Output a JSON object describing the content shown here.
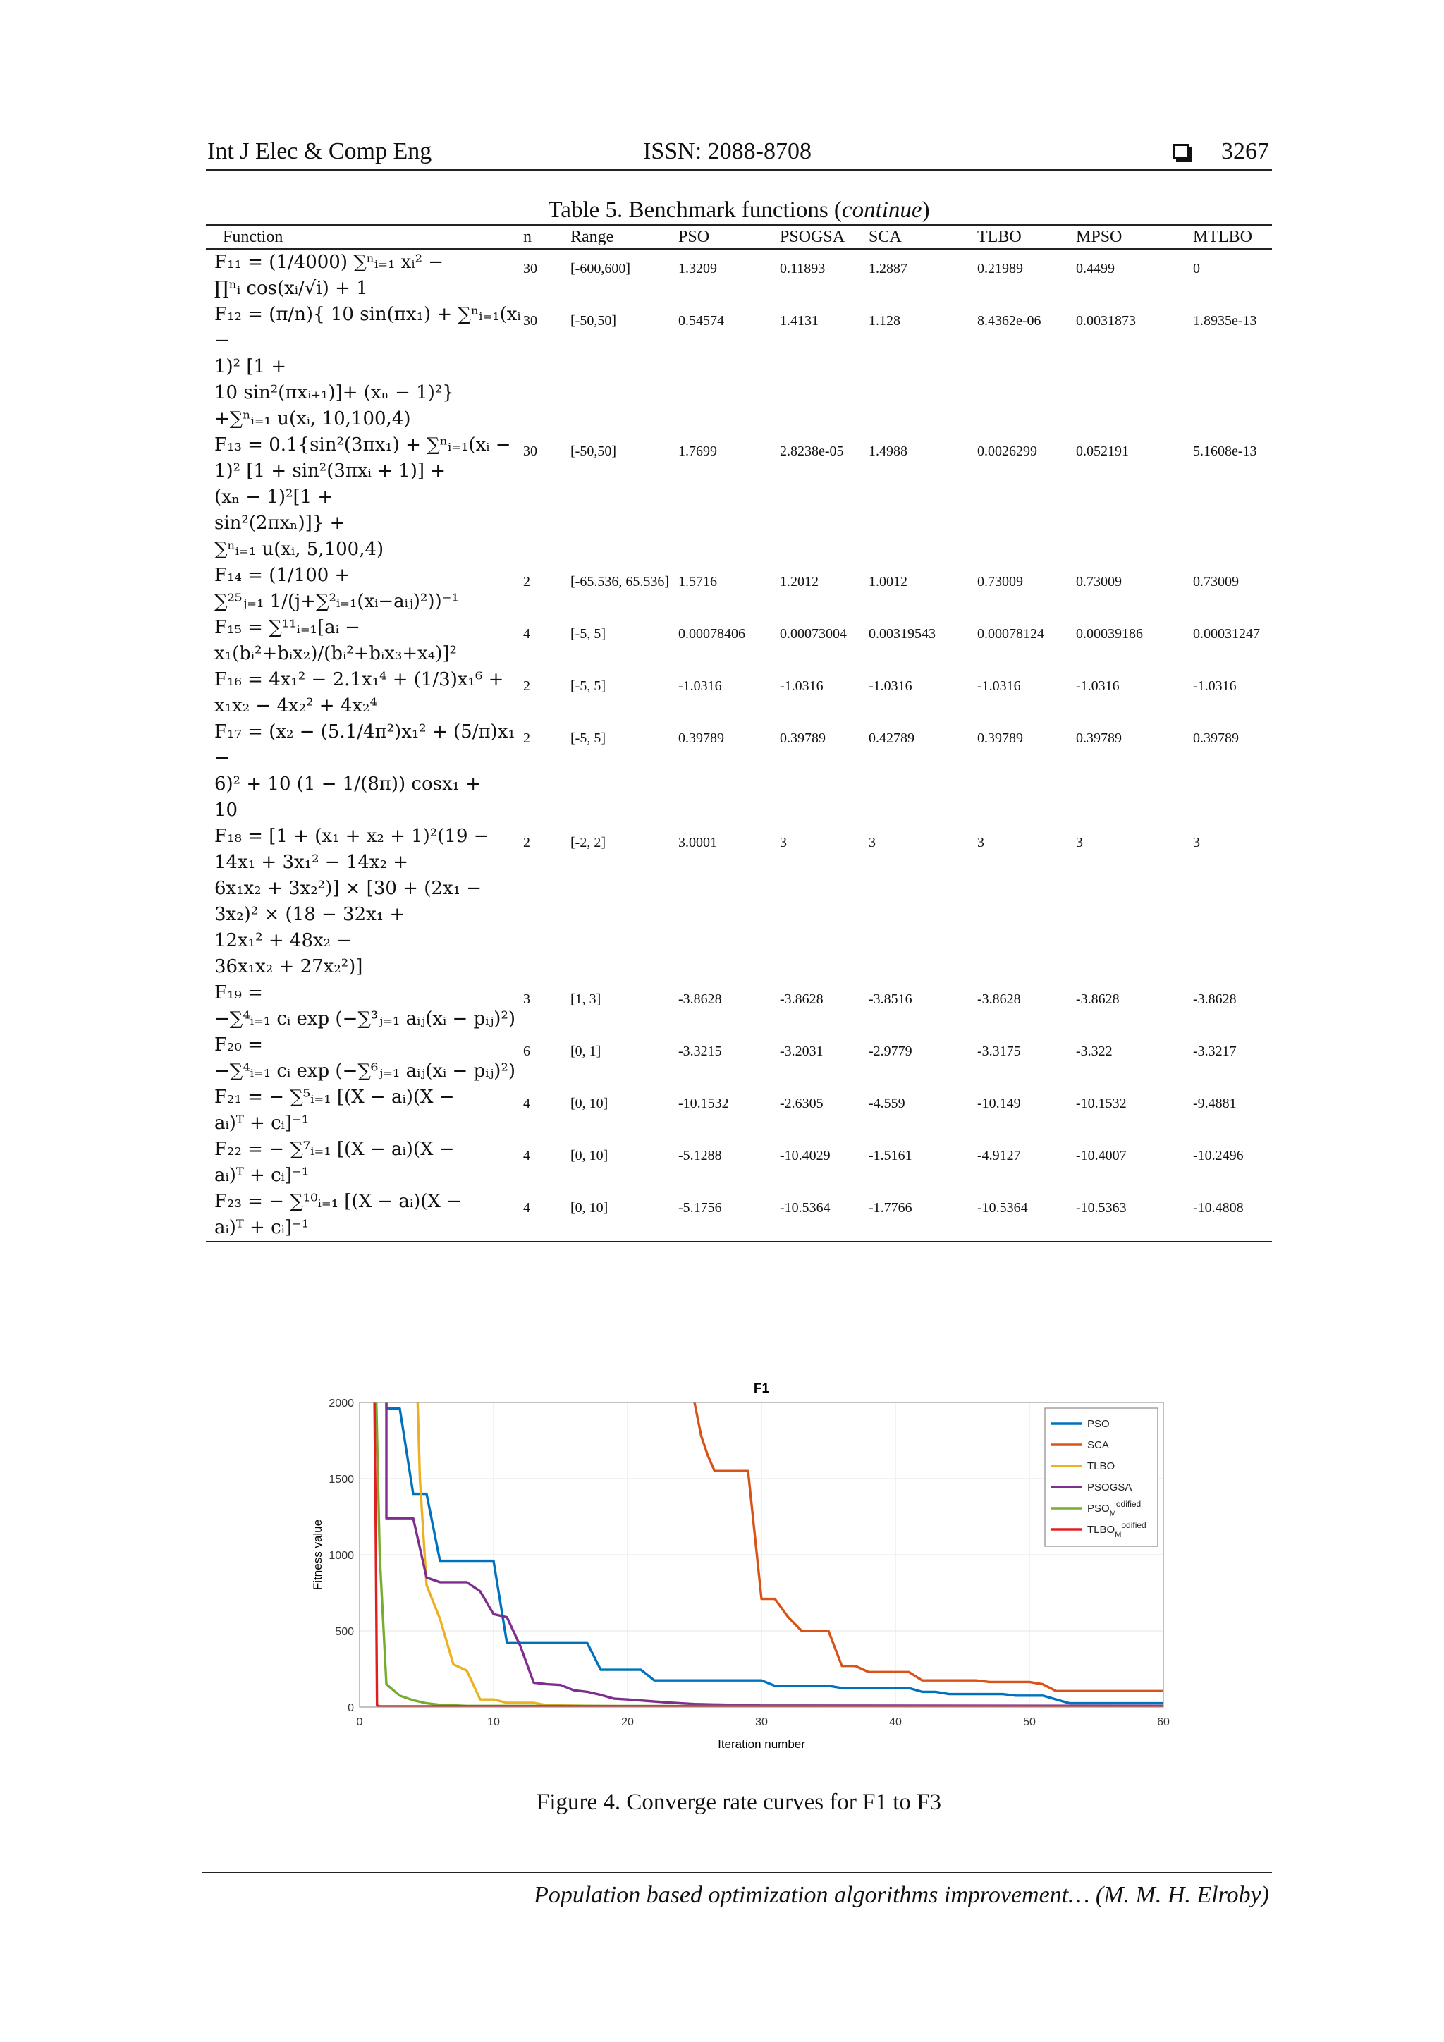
{
  "header": {
    "journal": "Int J Elec & Comp Eng",
    "issn": "ISSN: 2088-8708",
    "page": "3267"
  },
  "table": {
    "caption_prefix": "Table 5. Benchmark functions (",
    "caption_italic": "continue",
    "caption_suffix": ")",
    "columns": [
      "Function",
      "n",
      "Range",
      "PSO",
      "PSOGSA",
      "SCA",
      "TLBO",
      "MPSO",
      "MTLBO"
    ],
    "rows": [
      {
        "fn": "F₁₁ = (1/4000) ∑ⁿᵢ₌₁ xᵢ² −\n∏ⁿᵢ cos(xᵢ/√i) + 1",
        "n": "30",
        "range": "[-600,600]",
        "pso": "1.3209",
        "psogsa": "0.11893",
        "sca": "1.2887",
        "tlbo": "0.21989",
        "mpso": "0.4499",
        "mtlbo": "0"
      },
      {
        "fn": "F₁₂ = (π/n){ 10 sin(πx₁) + ∑ⁿᵢ₌₁(xᵢ −\n1)² [1 +\n10 sin²(πxᵢ₊₁)]+ (xₙ − 1)²}\n+∑ⁿᵢ₌₁ u(xᵢ, 10,100,4)",
        "n": "30",
        "range": "[-50,50]",
        "pso": "0.54574",
        "psogsa": "1.4131",
        "sca": "1.128",
        "tlbo": "8.4362e-06",
        "mpso": "0.0031873",
        "mtlbo": "1.8935e-13"
      },
      {
        "fn": "F₁₃ = 0.1{sin²(3πx₁) + ∑ⁿᵢ₌₁(xᵢ −\n1)² [1 +          sin²(3πxᵢ + 1)] +\n(xₙ − 1)²[1 +\n          sin²(2πxₙ)]} +\n∑ⁿᵢ₌₁ u(xᵢ, 5,100,4)",
        "n": "30",
        "range": "[-50,50]",
        "pso": "1.7699",
        "psogsa": "2.8238e-05",
        "sca": "1.4988",
        "tlbo": "0.0026299",
        "mpso": "0.052191",
        "mtlbo": "5.1608e-13"
      },
      {
        "fn": "F₁₄ = (1/100 +\n∑²⁵ⱼ₌₁ 1/(j+∑²ᵢ₌₁(xᵢ−aᵢⱼ)²))⁻¹",
        "n": "2",
        "range": "[-65.536, 65.536]",
        "pso": "1.5716",
        "psogsa": "1.2012",
        "sca": "1.0012",
        "tlbo": "0.73009",
        "mpso": "0.73009",
        "mtlbo": "0.73009"
      },
      {
        "fn": "F₁₅ = ∑¹¹ᵢ₌₁[aᵢ − x₁(bᵢ²+bᵢx₂)/(bᵢ²+bᵢx₃+x₄)]²",
        "n": "4",
        "range": "[-5, 5]",
        "pso": "0.00078406",
        "psogsa": "0.00073004",
        "sca": "0.00319543",
        "tlbo": "0.00078124",
        "mpso": "0.00039186",
        "mtlbo": "0.00031247"
      },
      {
        "fn": "F₁₆ = 4x₁² − 2.1x₁⁴ + (1/3)x₁⁶ +\nx₁x₂ − 4x₂² + 4x₂⁴",
        "n": "2",
        "range": "[-5, 5]",
        "pso": "-1.0316",
        "psogsa": "-1.0316",
        "sca": "-1.0316",
        "tlbo": "-1.0316",
        "mpso": "-1.0316",
        "mtlbo": "-1.0316"
      },
      {
        "fn": "F₁₇ =  (x₂ − (5.1/4π²)x₁² + (5/π)x₁ −\n6)² + 10 (1 −          1/(8π)) cosx₁ +\n10",
        "n": "2",
        "range": "[-5, 5]",
        "pso": "0.39789",
        "psogsa": "0.39789",
        "sca": "0.42789",
        "tlbo": "0.39789",
        "mpso": "0.39789",
        "mtlbo": "0.39789"
      },
      {
        "fn": "F₁₈ = [1 + (x₁ + x₂ + 1)²(19 −\n14x₁ + 3x₁² −          14x₂ +\n6x₁x₂ + 3x₂²)] × [30 + (2x₁ −\n        3x₂)² × (18 − 32x₁ +\n12x₁² + 48x₂ −\n    36x₁x₂ + 27x₂²)]",
        "n": "2",
        "range": "[-2, 2]",
        "pso": "3.0001",
        "psogsa": "3",
        "sca": "3",
        "tlbo": "3",
        "mpso": "3",
        "mtlbo": "3"
      },
      {
        "fn": "F₁₉ =\n−∑⁴ᵢ₌₁ cᵢ exp (−∑³ⱼ₌₁ aᵢⱼ(xᵢ − pᵢⱼ)²)",
        "n": "3",
        "range": "[1, 3]",
        "pso": "-3.8628",
        "psogsa": "-3.8628",
        "sca": "-3.8516",
        "tlbo": "-3.8628",
        "mpso": "-3.8628",
        "mtlbo": "-3.8628"
      },
      {
        "fn": "F₂₀ =\n−∑⁴ᵢ₌₁ cᵢ exp (−∑⁶ⱼ₌₁ aᵢⱼ(xᵢ − pᵢⱼ)²)",
        "n": "6",
        "range": "[0, 1]",
        "pso": "-3.3215",
        "psogsa": "-3.2031",
        "sca": "-2.9779",
        "tlbo": "-3.3175",
        "mpso": "-3.322",
        "mtlbo": "-3.3217"
      },
      {
        "fn": "F₂₁ = − ∑⁵ᵢ₌₁ [(X − aᵢ)(X −\naᵢ)ᵀ + cᵢ]⁻¹",
        "n": "4",
        "range": "[0, 10]",
        "pso": "-10.1532",
        "psogsa": "-2.6305",
        "sca": "-4.559",
        "tlbo": "-10.149",
        "mpso": "-10.1532",
        "mtlbo": "-9.4881"
      },
      {
        "fn": "F₂₂ = − ∑⁷ᵢ₌₁ [(X − aᵢ)(X −\naᵢ)ᵀ + cᵢ]⁻¹",
        "n": "4",
        "range": "[0, 10]",
        "pso": "-5.1288",
        "psogsa": "-10.4029",
        "sca": "-1.5161",
        "tlbo": "-4.9127",
        "mpso": "-10.4007",
        "mtlbo": "-10.2496"
      },
      {
        "fn": "F₂₃ = − ∑¹⁰ᵢ₌₁ [(X − aᵢ)(X −\naᵢ)ᵀ + cᵢ]⁻¹",
        "n": "4",
        "range": "[0, 10]",
        "pso": "-5.1756",
        "psogsa": "-10.5364",
        "sca": "-1.7766",
        "tlbo": "-10.5364",
        "mpso": "-10.5363",
        "mtlbo": "-10.4808"
      }
    ]
  },
  "chart_data": {
    "type": "line",
    "title": "F1",
    "xlabel": "Iteration number",
    "ylabel": "Fitness value",
    "xlim": [
      0,
      60
    ],
    "ylim": [
      0,
      2000
    ],
    "xticks": [
      0,
      10,
      20,
      30,
      40,
      50,
      60
    ],
    "yticks": [
      0,
      500,
      1000,
      1500,
      2000
    ],
    "grid": true,
    "legend_position": "top-right",
    "series": [
      {
        "name": "PSO",
        "color": "#0072BD",
        "points": [
          [
            2,
            3000
          ],
          [
            2,
            1960
          ],
          [
            3,
            1960
          ],
          [
            4,
            1400
          ],
          [
            5,
            1400
          ],
          [
            6,
            960
          ],
          [
            10,
            960
          ],
          [
            11,
            420
          ],
          [
            17,
            420
          ],
          [
            18,
            245
          ],
          [
            21,
            245
          ],
          [
            22,
            175
          ],
          [
            30,
            175
          ],
          [
            31,
            140
          ],
          [
            35,
            140
          ],
          [
            36,
            125
          ],
          [
            41,
            125
          ],
          [
            42,
            100
          ],
          [
            43,
            100
          ],
          [
            44,
            85
          ],
          [
            48,
            85
          ],
          [
            49,
            75
          ],
          [
            51,
            75
          ],
          [
            52,
            50
          ],
          [
            53,
            25
          ],
          [
            60,
            25
          ]
        ]
      },
      {
        "name": "SCA",
        "color": "#D95319",
        "points": [
          [
            24.5,
            3000
          ],
          [
            25,
            2000
          ],
          [
            25.5,
            1780
          ],
          [
            26,
            1650
          ],
          [
            26.5,
            1550
          ],
          [
            29,
            1550
          ],
          [
            30,
            710
          ],
          [
            31,
            710
          ],
          [
            32,
            590
          ],
          [
            33,
            500
          ],
          [
            35,
            500
          ],
          [
            36,
            270
          ],
          [
            37,
            270
          ],
          [
            38,
            230
          ],
          [
            41,
            230
          ],
          [
            42,
            175
          ],
          [
            46,
            175
          ],
          [
            47,
            165
          ],
          [
            50,
            165
          ],
          [
            51,
            150
          ],
          [
            52,
            105
          ],
          [
            60,
            105
          ]
        ]
      },
      {
        "name": "TLBO",
        "color": "#EDB120",
        "points": [
          [
            4,
            3000
          ],
          [
            4.5,
            1500
          ],
          [
            5,
            800
          ],
          [
            6,
            580
          ],
          [
            7,
            280
          ],
          [
            8,
            240
          ],
          [
            9,
            50
          ],
          [
            10,
            50
          ],
          [
            11,
            28
          ],
          [
            13,
            28
          ],
          [
            14,
            12
          ],
          [
            20,
            5
          ],
          [
            60,
            5
          ]
        ]
      },
      {
        "name": "PSOGSA",
        "color": "#7E2F8E",
        "points": [
          [
            2,
            3000
          ],
          [
            2,
            1240
          ],
          [
            4,
            1240
          ],
          [
            5,
            850
          ],
          [
            6,
            820
          ],
          [
            8,
            820
          ],
          [
            9,
            760
          ],
          [
            10,
            610
          ],
          [
            11,
            590
          ],
          [
            12,
            400
          ],
          [
            13,
            160
          ],
          [
            14,
            150
          ],
          [
            15,
            145
          ],
          [
            16,
            110
          ],
          [
            17,
            100
          ],
          [
            18,
            80
          ],
          [
            19,
            55
          ],
          [
            20,
            50
          ],
          [
            23,
            30
          ],
          [
            25,
            20
          ],
          [
            30,
            10
          ],
          [
            60,
            8
          ]
        ]
      },
      {
        "name": "PSO_Modified",
        "color": "#77AC30",
        "points": [
          [
            1,
            3000
          ],
          [
            1.5,
            1000
          ],
          [
            2,
            150
          ],
          [
            3,
            75
          ],
          [
            4,
            45
          ],
          [
            5,
            25
          ],
          [
            6,
            15
          ],
          [
            8,
            8
          ],
          [
            60,
            5
          ]
        ]
      },
      {
        "name": "TLBO_Modified",
        "color": "#E02020",
        "points": [
          [
            1,
            3000
          ],
          [
            1.2,
            1200
          ],
          [
            1.3,
            10
          ],
          [
            1.5,
            5
          ],
          [
            60,
            5
          ]
        ]
      }
    ]
  },
  "figure_caption": "Figure 4. Converge rate curves for F1 to F3",
  "footer": "Population based optimization algorithms improvement… (M. M. H. Elroby)"
}
